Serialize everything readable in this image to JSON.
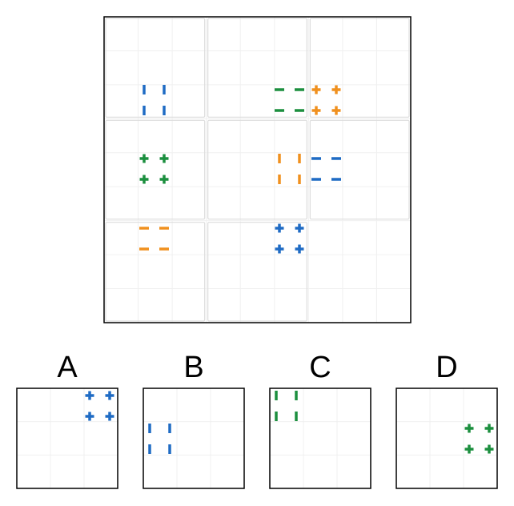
{
  "colors": {
    "blue": "#1f6bc4",
    "green": "#1c8f3f",
    "orange": "#f0901e",
    "frame": "#000000",
    "cell_border": "#dddddd",
    "grid": "#f0f0f0"
  },
  "matrix": {
    "rows": 3,
    "cols": 3,
    "cells": [
      {
        "row": 0,
        "col": 0,
        "pattern": "bars-vertical",
        "color": "blue"
      },
      {
        "row": 0,
        "col": 1,
        "pattern": "bars-horizontal",
        "color": "green"
      },
      {
        "row": 0,
        "col": 2,
        "pattern": "crosses",
        "color": "orange"
      },
      {
        "row": 1,
        "col": 0,
        "pattern": "crosses",
        "color": "green"
      },
      {
        "row": 1,
        "col": 1,
        "pattern": "bars-vertical",
        "color": "orange"
      },
      {
        "row": 1,
        "col": 2,
        "pattern": "bars-horizontal",
        "color": "blue"
      },
      {
        "row": 2,
        "col": 0,
        "pattern": "bars-horizontal",
        "color": "orange"
      },
      {
        "row": 2,
        "col": 1,
        "pattern": "crosses",
        "color": "blue"
      },
      {
        "row": 2,
        "col": 2,
        "pattern": "missing",
        "color": ""
      }
    ]
  },
  "options": [
    {
      "label": "A",
      "pattern": "crosses",
      "color": "blue",
      "position": "top-right"
    },
    {
      "label": "B",
      "pattern": "bars-vertical",
      "color": "blue",
      "position": "middle-left"
    },
    {
      "label": "C",
      "pattern": "bars-vertical",
      "color": "green",
      "position": "top-left"
    },
    {
      "label": "D",
      "pattern": "crosses",
      "color": "green",
      "position": "middle-right"
    }
  ]
}
